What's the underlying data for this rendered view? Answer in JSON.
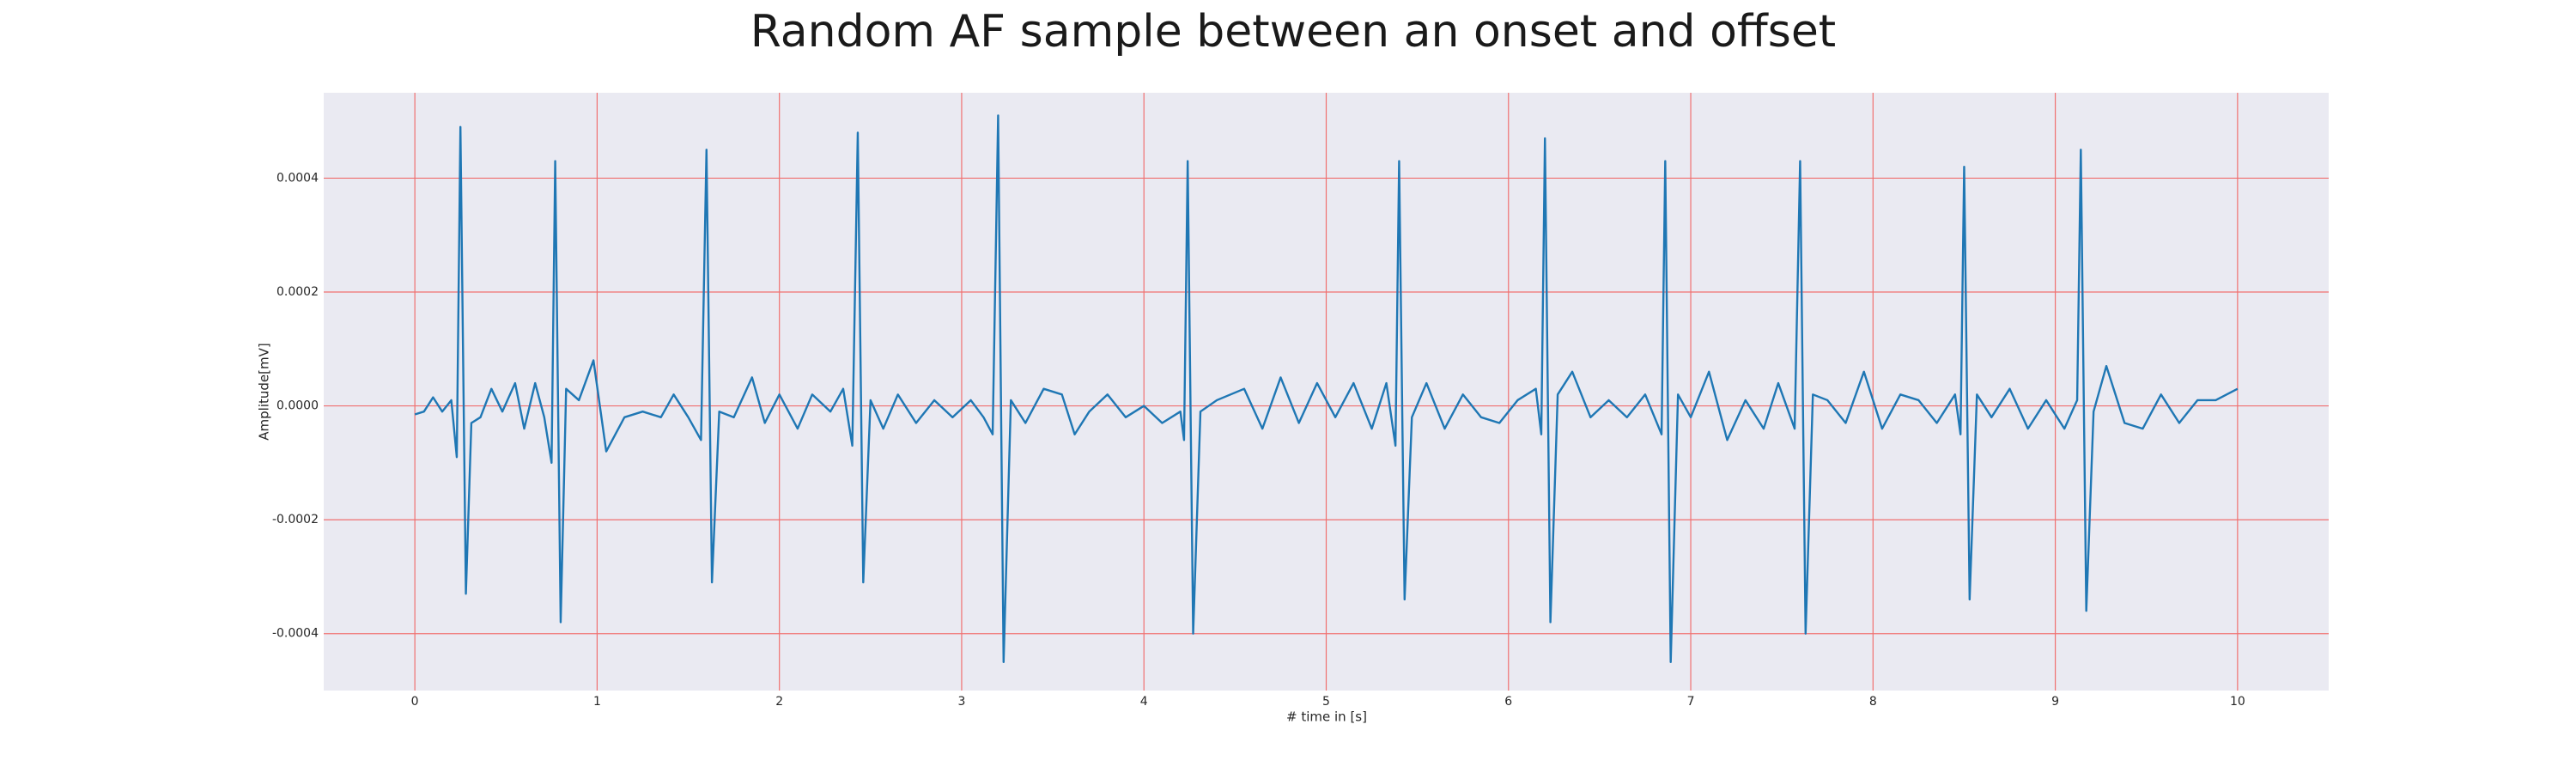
{
  "chart_data": {
    "type": "line",
    "title": "Random AF sample between an onset and offset",
    "xlabel": "# time in [s]",
    "ylabel": "Amplitude[mV]",
    "xlim": [
      -0.5,
      10.5
    ],
    "ylim": [
      -0.0005,
      0.00055
    ],
    "xticks": [
      0,
      1,
      2,
      3,
      4,
      5,
      6,
      7,
      8,
      9,
      10
    ],
    "yticks": [
      {
        "value": -0.0004,
        "label": "-0.0004"
      },
      {
        "value": -0.0002,
        "label": "-0.0002"
      },
      {
        "value": 0,
        "label": "0.0000"
      },
      {
        "value": 0.0002,
        "label": "0.0002"
      },
      {
        "value": 0.0004,
        "label": "0.0004"
      }
    ],
    "grid": true,
    "grid_color": "#f07070",
    "background": "#eaeaf2",
    "x": [
      0.0,
      0.05,
      0.1,
      0.15,
      0.2,
      0.23,
      0.25,
      0.28,
      0.31,
      0.36,
      0.42,
      0.48,
      0.55,
      0.6,
      0.66,
      0.71,
      0.75,
      0.77,
      0.8,
      0.83,
      0.9,
      0.98,
      1.05,
      1.15,
      1.25,
      1.35,
      1.42,
      1.5,
      1.57,
      1.6,
      1.63,
      1.67,
      1.75,
      1.85,
      1.92,
      2.0,
      2.1,
      2.18,
      2.28,
      2.35,
      2.4,
      2.43,
      2.46,
      2.5,
      2.57,
      2.65,
      2.75,
      2.85,
      2.95,
      3.05,
      3.12,
      3.17,
      3.2,
      3.23,
      3.27,
      3.35,
      3.45,
      3.55,
      3.62,
      3.7,
      3.8,
      3.9,
      4.0,
      4.1,
      4.2,
      4.22,
      4.24,
      4.27,
      4.31,
      4.4,
      4.55,
      4.65,
      4.75,
      4.85,
      4.95,
      5.05,
      5.15,
      5.25,
      5.33,
      5.38,
      5.4,
      5.43,
      5.47,
      5.55,
      5.65,
      5.75,
      5.85,
      5.95,
      6.05,
      6.15,
      6.18,
      6.2,
      6.23,
      6.27,
      6.35,
      6.45,
      6.55,
      6.65,
      6.75,
      6.84,
      6.86,
      6.89,
      6.93,
      7.0,
      7.1,
      7.2,
      7.3,
      7.4,
      7.48,
      7.57,
      7.6,
      7.63,
      7.67,
      7.75,
      7.85,
      7.95,
      8.05,
      8.15,
      8.25,
      8.35,
      8.45,
      8.48,
      8.5,
      8.53,
      8.57,
      8.65,
      8.75,
      8.85,
      8.95,
      9.05,
      9.12,
      9.14,
      9.17,
      9.21,
      9.28,
      9.38,
      9.48,
      9.58,
      9.68,
      9.78,
      9.88,
      10.0
    ],
    "series": [
      {
        "color": "#1f77b4",
        "values": [
          -1.5e-05,
          -1e-05,
          1.5e-05,
          -1e-05,
          1e-05,
          -9e-05,
          0.00049,
          -0.00033,
          -3e-05,
          -2e-05,
          3e-05,
          -1e-05,
          4e-05,
          -4e-05,
          4e-05,
          -2e-05,
          -0.0001,
          0.00043,
          -0.00038,
          3e-05,
          1e-05,
          8e-05,
          -8e-05,
          -2e-05,
          -1e-05,
          -2e-05,
          2e-05,
          -2e-05,
          -6e-05,
          0.00045,
          -0.00031,
          -1e-05,
          -2e-05,
          5e-05,
          -3e-05,
          2e-05,
          -4e-05,
          2e-05,
          -1e-05,
          3e-05,
          -7e-05,
          0.00048,
          -0.00031,
          1e-05,
          -4e-05,
          2e-05,
          -3e-05,
          1e-05,
          -2e-05,
          1e-05,
          -2e-05,
          -5e-05,
          0.00051,
          -0.00045,
          1e-05,
          -3e-05,
          3e-05,
          2e-05,
          -5e-05,
          -1e-05,
          2e-05,
          -2e-05,
          0,
          -3e-05,
          -1e-05,
          -6e-05,
          0.00043,
          -0.0004,
          -1e-05,
          1e-05,
          3e-05,
          -4e-05,
          5e-05,
          -3e-05,
          4e-05,
          -2e-05,
          4e-05,
          -4e-05,
          4e-05,
          -7e-05,
          0.00043,
          -0.00034,
          -2e-05,
          4e-05,
          -4e-05,
          2e-05,
          -2e-05,
          -3e-05,
          1e-05,
          3e-05,
          -5e-05,
          0.00047,
          -0.00038,
          2e-05,
          6e-05,
          -2e-05,
          1e-05,
          -2e-05,
          2e-05,
          -5e-05,
          0.00043,
          -0.00045,
          2e-05,
          -2e-05,
          6e-05,
          -6e-05,
          1e-05,
          -4e-05,
          4e-05,
          -4e-05,
          0.00043,
          -0.0004,
          2e-05,
          1e-05,
          -3e-05,
          6e-05,
          -4e-05,
          2e-05,
          1e-05,
          -3e-05,
          2e-05,
          -5e-05,
          0.00042,
          -0.00034,
          2e-05,
          -2e-05,
          3e-05,
          -4e-05,
          1e-05,
          -4e-05,
          1e-05,
          0.00045,
          -0.00036,
          -1e-05,
          7e-05,
          -3e-05,
          -4e-05,
          2e-05,
          -3e-05,
          1e-05,
          1e-05,
          3e-05
        ]
      }
    ]
  }
}
